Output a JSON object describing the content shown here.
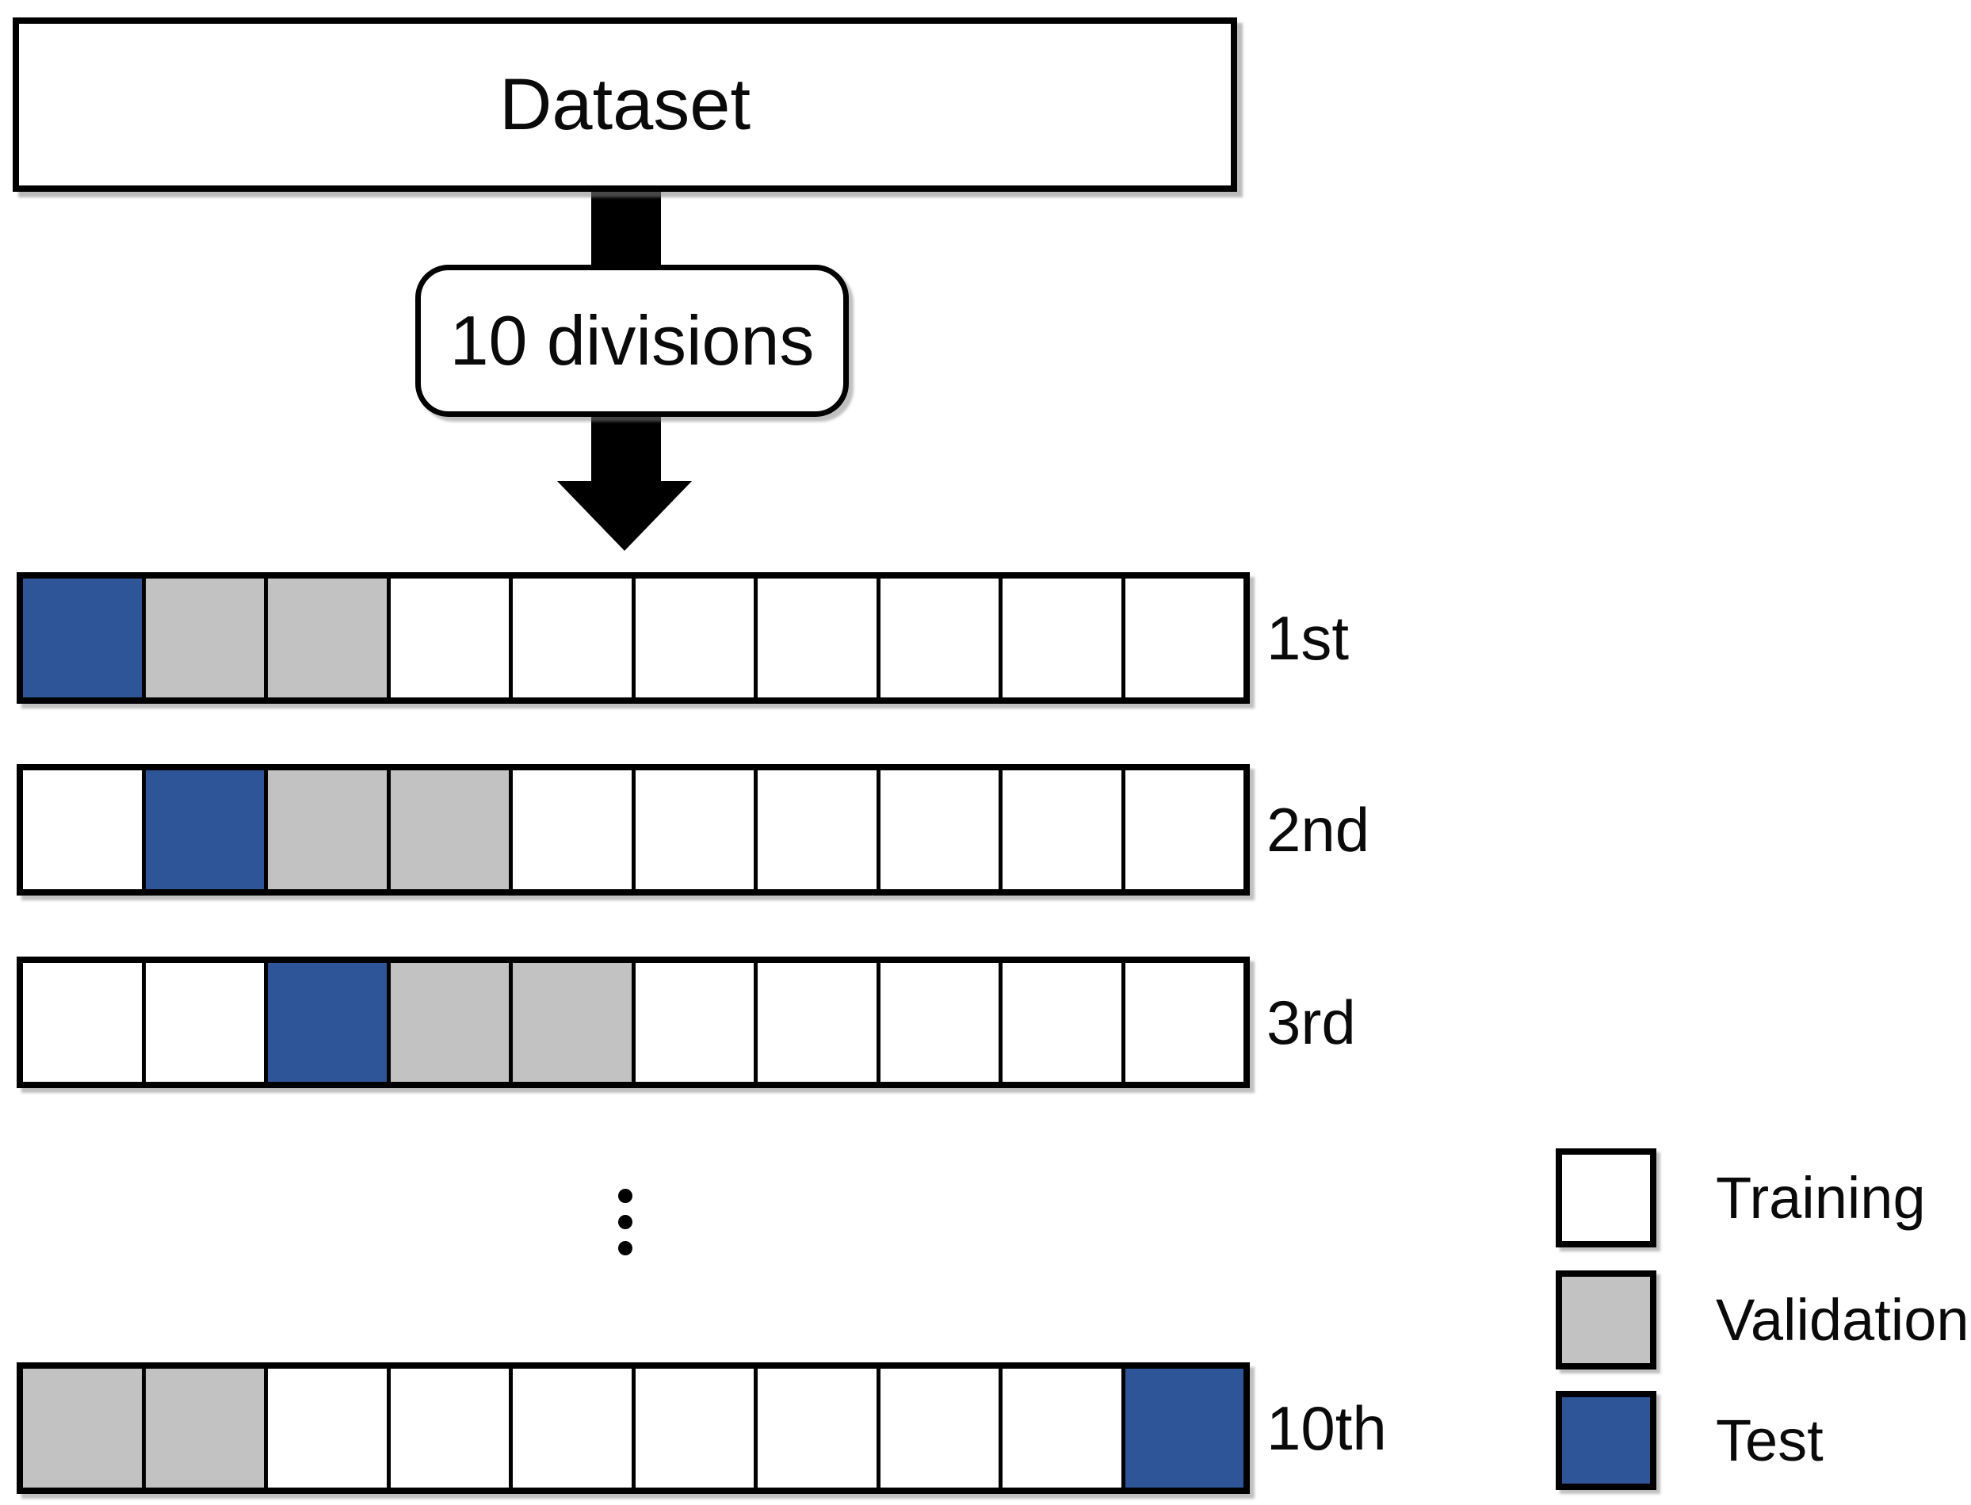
{
  "figure": {
    "dataset_label": "Dataset",
    "division_label": "10 divisions"
  },
  "colors": {
    "training": "#ffffff",
    "validation": "#c2c2c2",
    "test": "#2e5597",
    "border": "#000000"
  },
  "rows": [
    {
      "label": "1st",
      "cells": [
        "test",
        "validation",
        "validation",
        "training",
        "training",
        "training",
        "training",
        "training",
        "training",
        "training"
      ]
    },
    {
      "label": "2nd",
      "cells": [
        "training",
        "test",
        "validation",
        "validation",
        "training",
        "training",
        "training",
        "training",
        "training",
        "training"
      ]
    },
    {
      "label": "3rd",
      "cells": [
        "training",
        "training",
        "test",
        "validation",
        "validation",
        "training",
        "training",
        "training",
        "training",
        "training"
      ]
    },
    {
      "label": "10th",
      "cells": [
        "validation",
        "validation",
        "training",
        "training",
        "training",
        "training",
        "training",
        "training",
        "training",
        "test"
      ]
    }
  ],
  "ellipsis_dot_count": 3,
  "legend": [
    {
      "type": "training",
      "label": "Training"
    },
    {
      "type": "validation",
      "label": "Validation"
    },
    {
      "type": "test",
      "label": "Test"
    }
  ]
}
